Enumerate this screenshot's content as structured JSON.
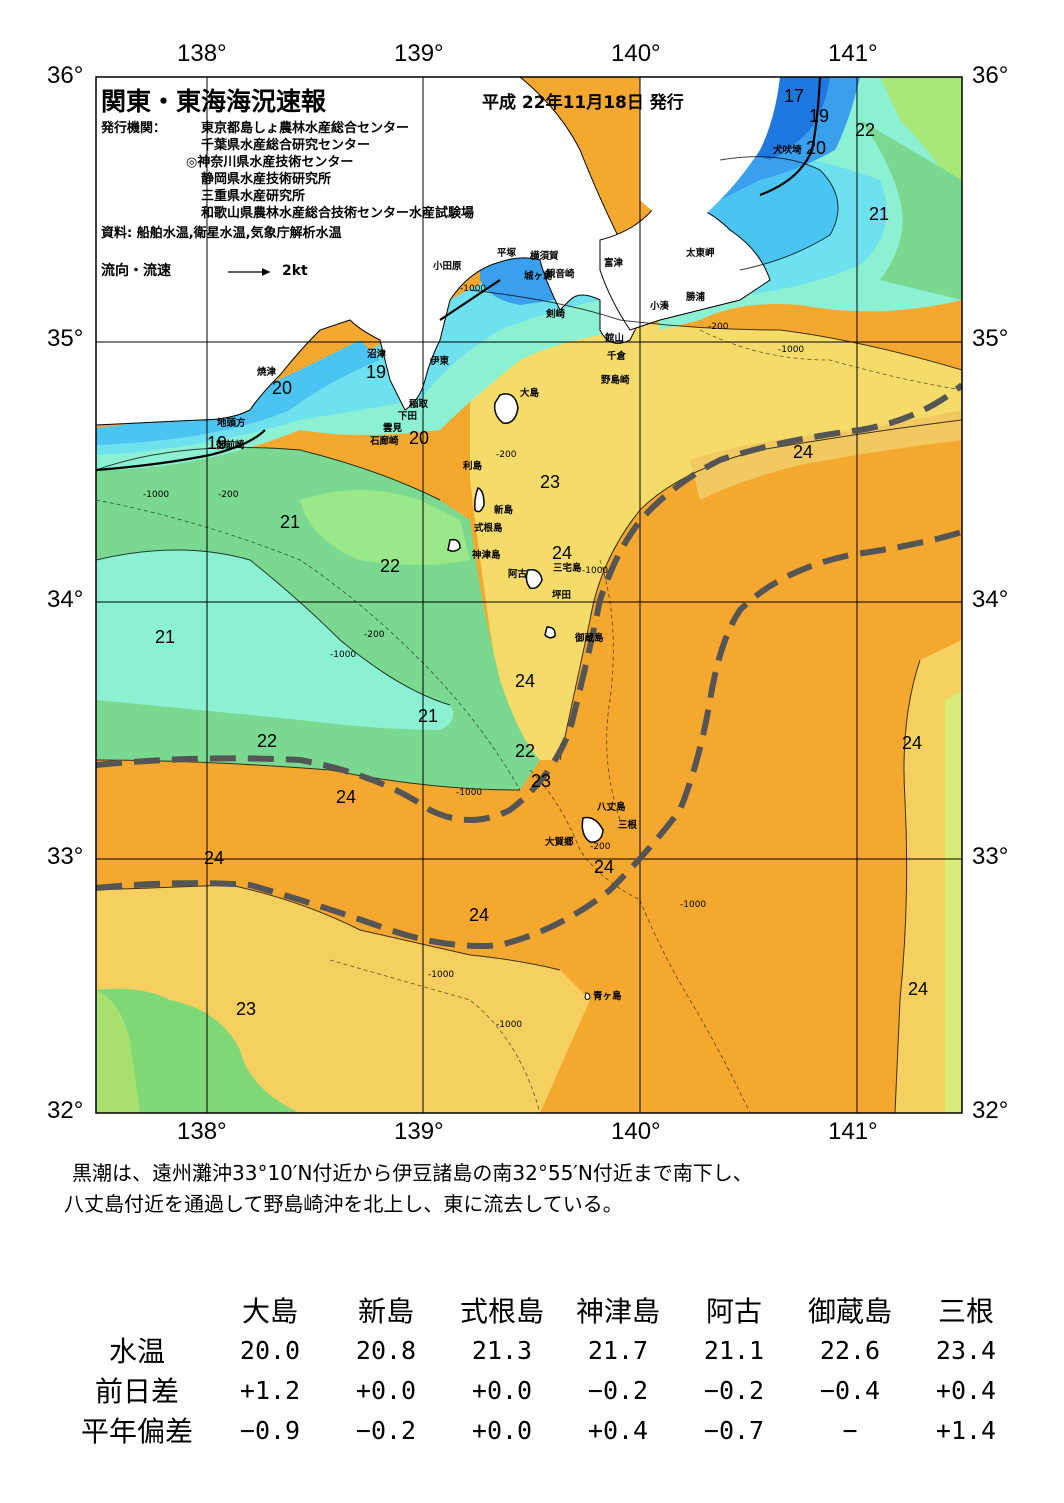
{
  "title": "関東・東海海況速報",
  "issue_date": "平成 22年11月18日 発行",
  "issuer_label": "発行機関：",
  "issuers": [
    "東京都島しょ農林水産総合センター",
    "千葉県水産総合研究センター",
    "◎神奈川県水産技術センター",
    "静岡県水産技術研究所",
    "三重県水産研究所",
    "和歌山県農林水産総合技術センター水産試験場"
  ],
  "sources": "資料: 船舶水温,衛星水温,気象庁解析水温",
  "legend": {
    "label": "流向・流速",
    "scale": "2kt"
  },
  "axes": {
    "lon_ticks": [
      "138°",
      "139°",
      "140°",
      "141°"
    ],
    "lat_ticks": [
      "36°",
      "35°",
      "34°",
      "33°",
      "32°"
    ],
    "lon_range": [
      137.5,
      141.5
    ],
    "lat_range": [
      32,
      36
    ]
  },
  "colors": {
    "t17": "#1f78e0",
    "t18": "#3aa0ee",
    "t19": "#4cc4f2",
    "t20": "#6fe0ee",
    "t21": "#8cf0d2",
    "t22": "#7ad890",
    "t22b": "#a0e070",
    "t23": "#f5e070",
    "t23b": "#f2c860",
    "t24": "#f5a830",
    "t25": "#d0e878",
    "land": "#ffffff",
    "kuroshio": "#555555"
  },
  "places": [
    "小田原",
    "平塚",
    "横須賀",
    "観音崎",
    "富津",
    "城ヶ島",
    "剣崎",
    "館山",
    "千倉",
    "野島崎",
    "太東岬",
    "勝浦",
    "小湊",
    "犬吠埼",
    "沼津",
    "焼津",
    "伊東",
    "稲取",
    "下田",
    "雲見",
    "石廊崎",
    "地頭方",
    "御前崎",
    "大島",
    "利島",
    "新島",
    "式根島",
    "神津島",
    "阿古",
    "三宅島",
    "坪田",
    "御蔵島",
    "八丈島",
    "三根",
    "大賀郷",
    "青ヶ島"
  ],
  "isotherm_labels": [
    "17",
    "19",
    "20",
    "22",
    "21",
    "19",
    "20",
    "20",
    "19",
    "23",
    "24",
    "21",
    "22",
    "21",
    "24",
    "21",
    "22",
    "23",
    "22",
    "24",
    "24",
    "24",
    "24",
    "24",
    "24",
    "23",
    "24"
  ],
  "depth_labels": [
    "-1000",
    "-200"
  ],
  "summary_lines": [
    "黒潮は、遠州灘沖33°10′N付近から伊豆諸島の南32°55′N付近まで南下し、",
    "八丈島付近を通過して野島崎沖を北上し、東に流去している。"
  ],
  "table": {
    "columns": [
      "大島",
      "新島",
      "式根島",
      "神津島",
      "阿古",
      "御蔵島",
      "三根"
    ],
    "rows": [
      {
        "label": "水温",
        "values": [
          "20.0",
          "20.8",
          "21.3",
          "21.7",
          "21.1",
          "22.6",
          "23.4"
        ]
      },
      {
        "label": "前日差",
        "values": [
          "+1.2",
          "+0.0",
          "+0.0",
          "−0.2",
          "−0.2",
          "−0.4",
          "+0.4"
        ]
      },
      {
        "label": "平年偏差",
        "values": [
          "−0.9",
          "−0.2",
          "+0.0",
          "+0.4",
          "−0.7",
          "−",
          "+1.4"
        ]
      }
    ]
  }
}
